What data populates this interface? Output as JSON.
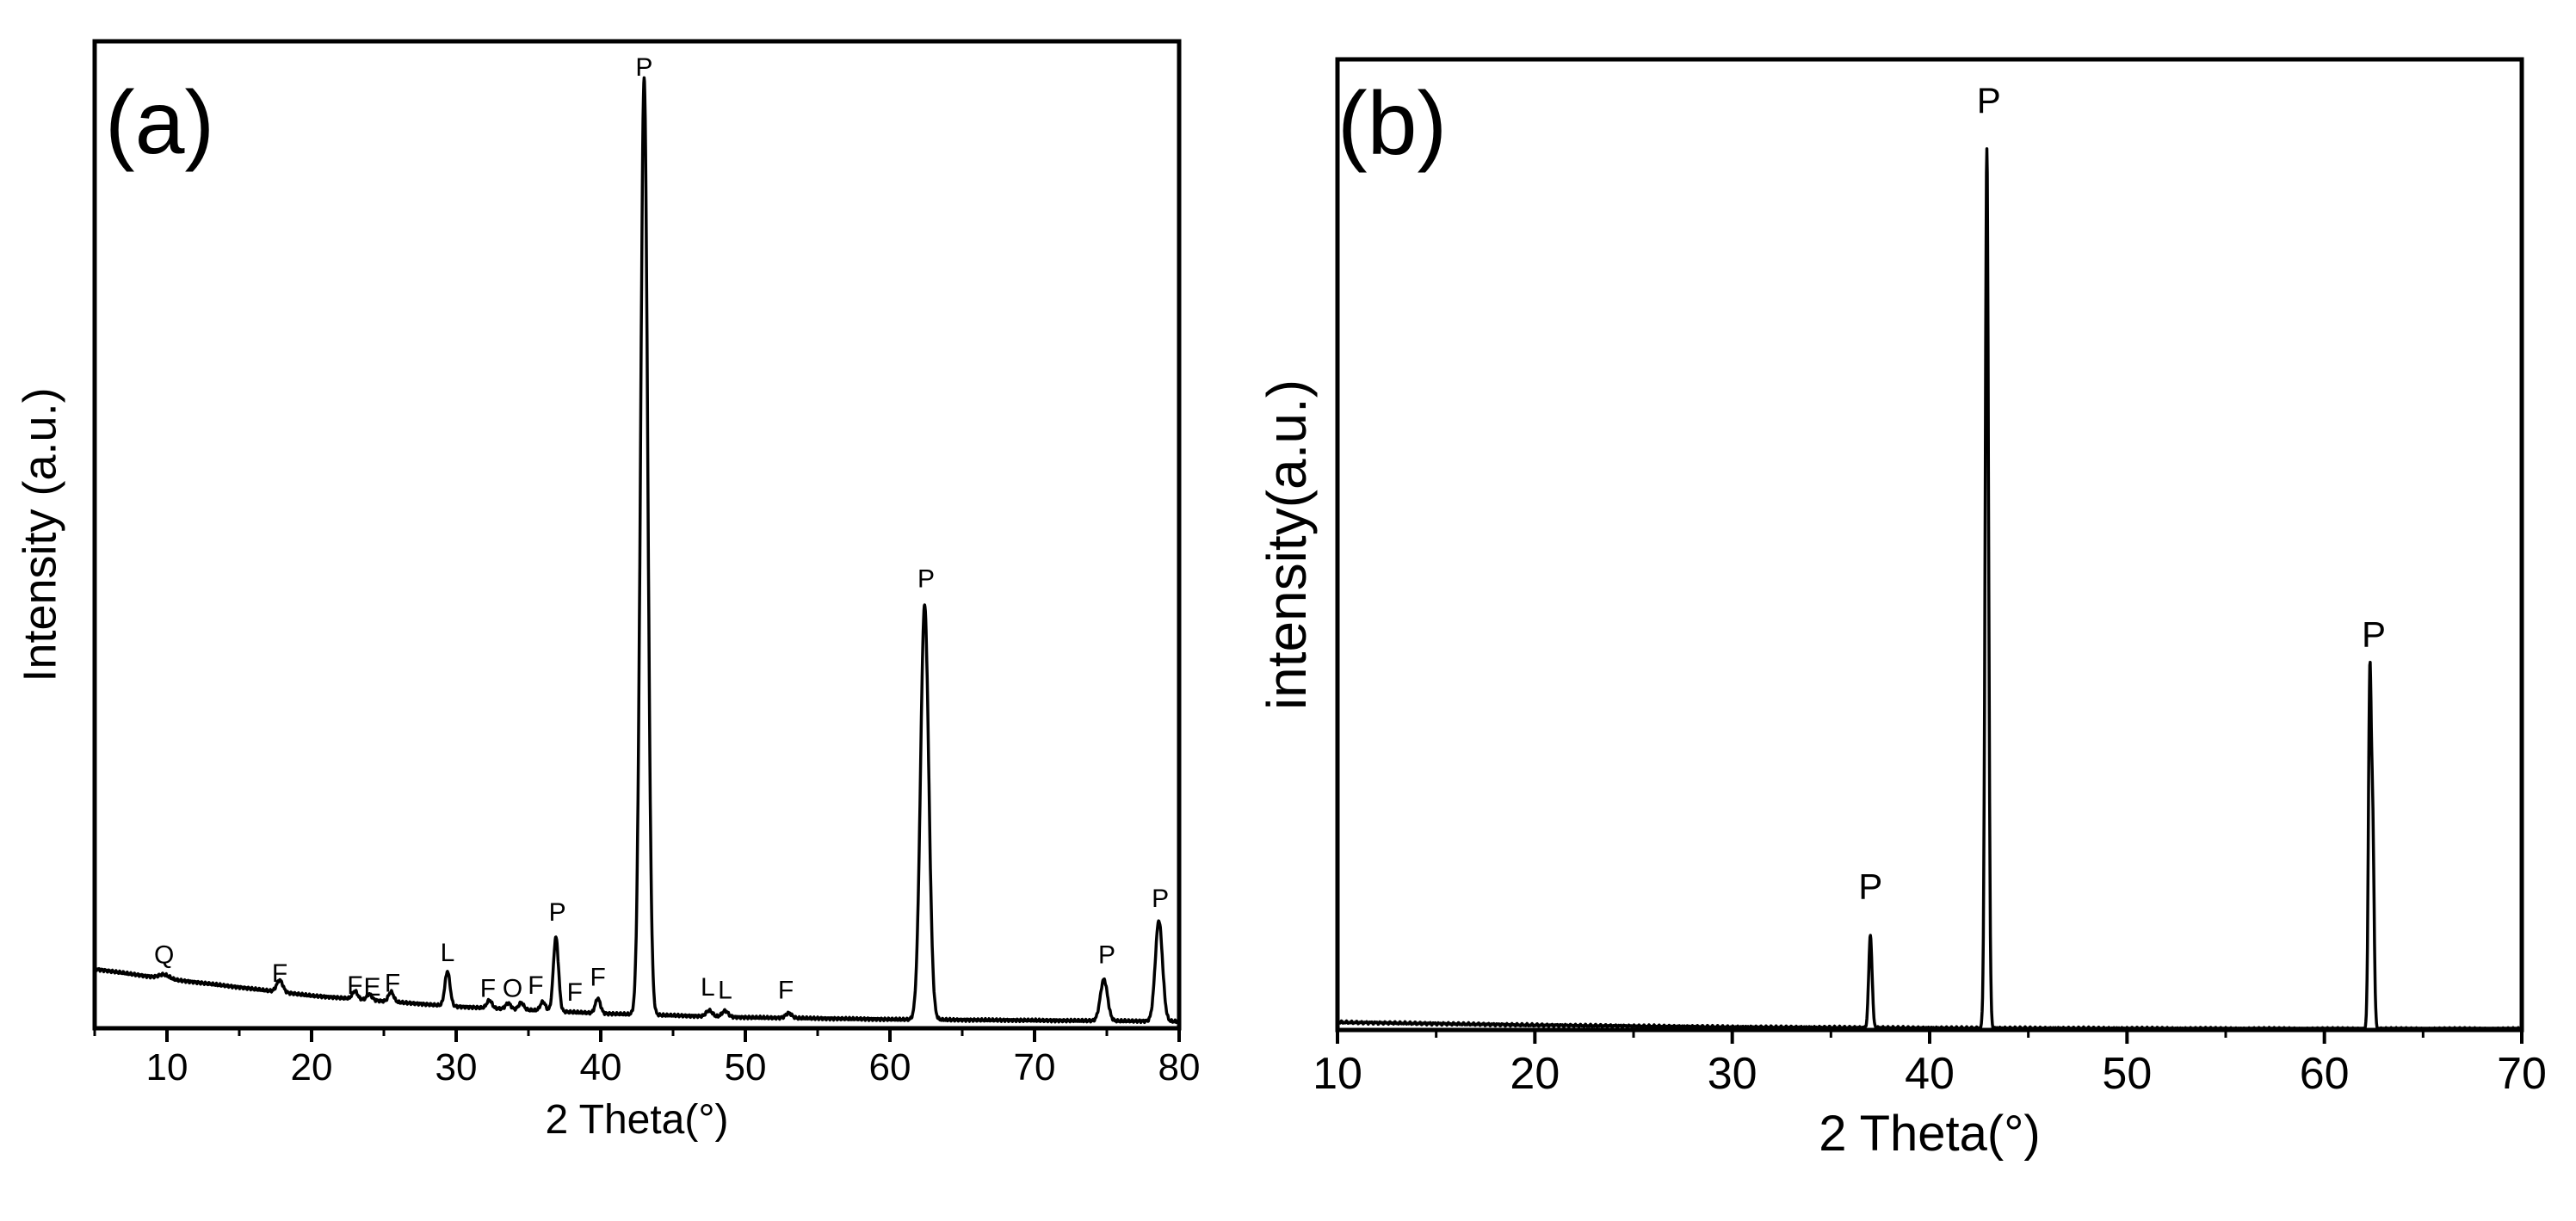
{
  "chart_data": [
    {
      "type": "line",
      "panel_label": "(a)",
      "xlabel": "2 Theta(°)",
      "ylabel": "Intensity (a.u.)",
      "xlim": [
        5,
        80
      ],
      "x_ticks": [
        10,
        20,
        30,
        40,
        50,
        60,
        70,
        80
      ],
      "x_minor_step": 5,
      "ylim": [
        0,
        1
      ],
      "y_ticks": [],
      "grid": false,
      "series": [
        {
          "background": {
            "x": [
              5,
              10,
              20,
              30,
              40,
              50,
              60,
              70,
              80
            ],
            "y": [
              0.06,
              0.05,
              0.033,
              0.022,
              0.015,
              0.011,
              0.009,
              0.008,
              0.007
            ]
          },
          "peaks": [
            {
              "x": 9.8,
              "height": 0.004,
              "width": 0.5
            },
            {
              "x": 17.8,
              "height": 0.012,
              "width": 0.3
            },
            {
              "x": 23.0,
              "height": 0.008,
              "width": 0.25
            },
            {
              "x": 24.0,
              "height": 0.006,
              "width": 0.25
            },
            {
              "x": 25.5,
              "height": 0.01,
              "width": 0.25
            },
            {
              "x": 29.4,
              "height": 0.035,
              "width": 0.25
            },
            {
              "x": 32.3,
              "height": 0.008,
              "width": 0.25
            },
            {
              "x": 33.6,
              "height": 0.006,
              "width": 0.25
            },
            {
              "x": 34.5,
              "height": 0.007,
              "width": 0.25
            },
            {
              "x": 36.0,
              "height": 0.009,
              "width": 0.25
            },
            {
              "x": 36.9,
              "height": 0.075,
              "width": 0.25
            },
            {
              "x": 39.8,
              "height": 0.015,
              "width": 0.25
            },
            {
              "x": 43.0,
              "height": 0.95,
              "width": 0.35
            },
            {
              "x": 47.5,
              "height": 0.006,
              "width": 0.3
            },
            {
              "x": 48.6,
              "height": 0.006,
              "width": 0.3
            },
            {
              "x": 53.0,
              "height": 0.005,
              "width": 0.3
            },
            {
              "x": 62.4,
              "height": 0.42,
              "width": 0.4
            },
            {
              "x": 74.8,
              "height": 0.042,
              "width": 0.35
            },
            {
              "x": 78.6,
              "height": 0.102,
              "width": 0.35
            }
          ]
        }
      ],
      "annotations": [
        {
          "text": "Q",
          "x": 9.8,
          "y": 0.066
        },
        {
          "text": "F",
          "x": 17.8,
          "y": 0.047
        },
        {
          "text": "F",
          "x": 23.0,
          "y": 0.035
        },
        {
          "text": "E",
          "x": 24.2,
          "y": 0.033
        },
        {
          "text": "F",
          "x": 25.6,
          "y": 0.037
        },
        {
          "text": "L",
          "x": 29.4,
          "y": 0.068
        },
        {
          "text": "F",
          "x": 32.2,
          "y": 0.032
        },
        {
          "text": "O",
          "x": 33.9,
          "y": 0.032
        },
        {
          "text": "F",
          "x": 35.5,
          "y": 0.035
        },
        {
          "text": "F",
          "x": 38.2,
          "y": 0.028
        },
        {
          "text": "F",
          "x": 39.8,
          "y": 0.043
        },
        {
          "text": "P",
          "x": 37.0,
          "y": 0.109
        },
        {
          "text": "P",
          "x": 43.0,
          "y": 0.965
        },
        {
          "text": "L",
          "x": 47.4,
          "y": 0.033
        },
        {
          "text": "L",
          "x": 48.6,
          "y": 0.03
        },
        {
          "text": "F",
          "x": 52.8,
          "y": 0.03
        },
        {
          "text": "P",
          "x": 62.5,
          "y": 0.447
        },
        {
          "text": "P",
          "x": 75.0,
          "y": 0.066
        },
        {
          "text": "P",
          "x": 78.7,
          "y": 0.123
        }
      ]
    },
    {
      "type": "line",
      "panel_label": "(b)",
      "xlabel": "2 Theta(°)",
      "ylabel": "intensity(a.u.)",
      "xlim": [
        10,
        70
      ],
      "x_ticks": [
        10,
        20,
        30,
        40,
        50,
        60,
        70
      ],
      "x_minor_step": 5,
      "ylim": [
        0,
        1
      ],
      "y_ticks": [],
      "grid": false,
      "series": [
        {
          "background": {
            "x": [
              10,
              20,
              30,
              40,
              50,
              60,
              70
            ],
            "y": [
              0.008,
              0.005,
              0.003,
              0.002,
              0.0015,
              0.001,
              0.001
            ]
          },
          "peaks": [
            {
              "x": 37.0,
              "height": 0.095,
              "width": 0.12
            },
            {
              "x": 42.9,
              "height": 0.905,
              "width": 0.12
            },
            {
              "x": 62.3,
              "height": 0.355,
              "width": 0.1
            },
            {
              "x": 62.45,
              "height": 0.2,
              "width": 0.1
            }
          ]
        }
      ],
      "annotations": [
        {
          "text": "P",
          "x": 37.0,
          "y": 0.135
        },
        {
          "text": "P",
          "x": 43.0,
          "y": 0.945
        },
        {
          "text": "P",
          "x": 62.5,
          "y": 0.395
        }
      ]
    }
  ]
}
